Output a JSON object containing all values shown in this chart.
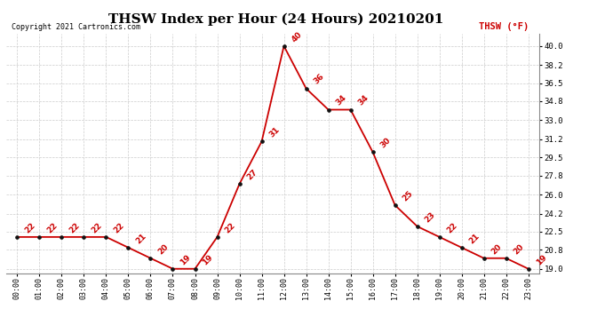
{
  "title": "THSW Index per Hour (24 Hours) 20210201",
  "copyright_text": "Copyright 2021 Cartronics.com",
  "legend_label": "THSW (°F)",
  "hours": [
    0,
    1,
    2,
    3,
    4,
    5,
    6,
    7,
    8,
    9,
    10,
    11,
    12,
    13,
    14,
    15,
    16,
    17,
    18,
    19,
    20,
    21,
    22,
    23
  ],
  "values": [
    22,
    22,
    22,
    22,
    22,
    21,
    20,
    19,
    19,
    22,
    27,
    31,
    40,
    36,
    34,
    34,
    30,
    25,
    23,
    22,
    21,
    20,
    20,
    19
  ],
  "line_color": "#cc0000",
  "marker_color": "#111111",
  "grid_color": "#cccccc",
  "bg_color": "#ffffff",
  "title_fontsize": 11,
  "annotation_fontsize": 6.5,
  "yticks": [
    19.0,
    20.8,
    22.5,
    24.2,
    26.0,
    27.8,
    29.5,
    31.2,
    33.0,
    34.8,
    36.5,
    38.2,
    40.0
  ],
  "ylim": [
    18.6,
    41.2
  ],
  "xlim": [
    -0.5,
    23.5
  ]
}
